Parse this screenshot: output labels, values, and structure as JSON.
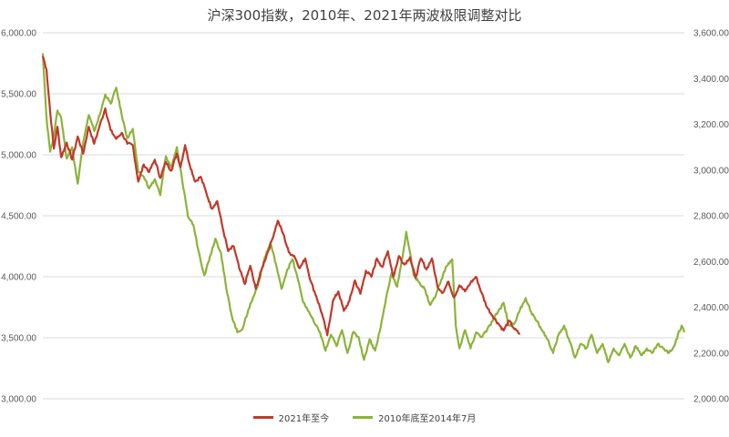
{
  "chart_data": {
    "type": "line",
    "title": "沪深300指数，2010年、2021年两波极限调整对比",
    "x_count": 700,
    "y_left": {
      "ticks": [
        "3,000.00",
        "3,500.00",
        "4,000.00",
        "4,500.00",
        "5,000.00",
        "5,500.00",
        "6,000.00"
      ],
      "range": [
        3000,
        6000
      ]
    },
    "y_right": {
      "ticks": [
        "2,000.00",
        "2,200.00",
        "2,400.00",
        "2,600.00",
        "2,800.00",
        "3,000.00",
        "3,200.00",
        "3,400.00",
        "3,600.00"
      ],
      "range": [
        2000,
        3600
      ]
    },
    "grid": true,
    "legend_position": "bottom",
    "series": [
      {
        "name": "2021年至今",
        "axis": "left",
        "color": "#c0392b",
        "points": [
          [
            0,
            5810
          ],
          [
            4,
            5700
          ],
          [
            8,
            5350
          ],
          [
            12,
            5050
          ],
          [
            16,
            5230
          ],
          [
            20,
            4980
          ],
          [
            26,
            5100
          ],
          [
            32,
            4960
          ],
          [
            38,
            5150
          ],
          [
            44,
            5010
          ],
          [
            50,
            5230
          ],
          [
            56,
            5090
          ],
          [
            62,
            5240
          ],
          [
            68,
            5380
          ],
          [
            74,
            5200
          ],
          [
            80,
            5130
          ],
          [
            86,
            5180
          ],
          [
            92,
            5090
          ],
          [
            98,
            5080
          ],
          [
            104,
            4780
          ],
          [
            110,
            4920
          ],
          [
            116,
            4860
          ],
          [
            122,
            4960
          ],
          [
            128,
            4810
          ],
          [
            134,
            4940
          ],
          [
            140,
            4870
          ],
          [
            146,
            5010
          ],
          [
            150,
            4900
          ],
          [
            155,
            5080
          ],
          [
            160,
            4920
          ],
          [
            166,
            4780
          ],
          [
            172,
            4820
          ],
          [
            178,
            4690
          ],
          [
            184,
            4560
          ],
          [
            190,
            4620
          ],
          [
            196,
            4400
          ],
          [
            202,
            4210
          ],
          [
            208,
            4250
          ],
          [
            214,
            4070
          ],
          [
            220,
            3940
          ],
          [
            226,
            4090
          ],
          [
            232,
            3900
          ],
          [
            238,
            4050
          ],
          [
            244,
            4180
          ],
          [
            250,
            4310
          ],
          [
            256,
            4460
          ],
          [
            262,
            4350
          ],
          [
            268,
            4200
          ],
          [
            274,
            4170
          ],
          [
            280,
            4070
          ],
          [
            286,
            4150
          ],
          [
            292,
            3960
          ],
          [
            298,
            3840
          ],
          [
            304,
            3700
          ],
          [
            310,
            3520
          ],
          [
            316,
            3800
          ],
          [
            322,
            3880
          ],
          [
            328,
            3720
          ],
          [
            334,
            3800
          ],
          [
            340,
            3970
          ],
          [
            346,
            3860
          ],
          [
            352,
            4050
          ],
          [
            358,
            4000
          ],
          [
            364,
            4150
          ],
          [
            370,
            4080
          ],
          [
            376,
            4210
          ],
          [
            382,
            4000
          ],
          [
            388,
            4170
          ],
          [
            394,
            4100
          ],
          [
            400,
            4160
          ],
          [
            406,
            3990
          ],
          [
            412,
            4150
          ],
          [
            418,
            4060
          ],
          [
            424,
            4150
          ],
          [
            430,
            3920
          ],
          [
            436,
            3870
          ],
          [
            442,
            3960
          ],
          [
            448,
            3830
          ],
          [
            454,
            3930
          ],
          [
            460,
            3880
          ],
          [
            466,
            3950
          ],
          [
            472,
            4000
          ],
          [
            478,
            3870
          ],
          [
            484,
            3750
          ],
          [
            490,
            3680
          ],
          [
            496,
            3620
          ],
          [
            502,
            3560
          ],
          [
            508,
            3640
          ],
          [
            514,
            3570
          ],
          [
            520,
            3530
          ]
        ]
      },
      {
        "name": "2010年底至2014年7月",
        "axis": "right",
        "color": "#8db33a",
        "points": [
          [
            0,
            3510
          ],
          [
            4,
            3230
          ],
          [
            8,
            3080
          ],
          [
            12,
            3150
          ],
          [
            16,
            3260
          ],
          [
            20,
            3230
          ],
          [
            26,
            3050
          ],
          [
            32,
            3100
          ],
          [
            38,
            2940
          ],
          [
            44,
            3120
          ],
          [
            50,
            3240
          ],
          [
            56,
            3170
          ],
          [
            62,
            3240
          ],
          [
            68,
            3330
          ],
          [
            74,
            3290
          ],
          [
            80,
            3360
          ],
          [
            86,
            3240
          ],
          [
            92,
            3140
          ],
          [
            98,
            3180
          ],
          [
            104,
            2990
          ],
          [
            110,
            2970
          ],
          [
            116,
            2920
          ],
          [
            122,
            2960
          ],
          [
            128,
            2890
          ],
          [
            134,
            3060
          ],
          [
            140,
            3010
          ],
          [
            146,
            3100
          ],
          [
            152,
            2950
          ],
          [
            158,
            2800
          ],
          [
            164,
            2760
          ],
          [
            170,
            2640
          ],
          [
            176,
            2540
          ],
          [
            182,
            2620
          ],
          [
            188,
            2700
          ],
          [
            194,
            2640
          ],
          [
            200,
            2480
          ],
          [
            206,
            2360
          ],
          [
            212,
            2290
          ],
          [
            218,
            2310
          ],
          [
            224,
            2390
          ],
          [
            230,
            2450
          ],
          [
            236,
            2520
          ],
          [
            242,
            2620
          ],
          [
            248,
            2680
          ],
          [
            254,
            2590
          ],
          [
            260,
            2480
          ],
          [
            266,
            2560
          ],
          [
            272,
            2610
          ],
          [
            278,
            2520
          ],
          [
            284,
            2420
          ],
          [
            290,
            2380
          ],
          [
            296,
            2330
          ],
          [
            302,
            2290
          ],
          [
            308,
            2210
          ],
          [
            314,
            2280
          ],
          [
            320,
            2230
          ],
          [
            326,
            2300
          ],
          [
            332,
            2200
          ],
          [
            338,
            2290
          ],
          [
            344,
            2270
          ],
          [
            350,
            2170
          ],
          [
            356,
            2260
          ],
          [
            362,
            2210
          ],
          [
            368,
            2310
          ],
          [
            374,
            2440
          ],
          [
            380,
            2550
          ],
          [
            386,
            2490
          ],
          [
            392,
            2620
          ],
          [
            396,
            2730
          ],
          [
            400,
            2640
          ],
          [
            404,
            2540
          ],
          [
            410,
            2510
          ],
          [
            416,
            2480
          ],
          [
            422,
            2410
          ],
          [
            428,
            2450
          ],
          [
            434,
            2520
          ],
          [
            440,
            2580
          ],
          [
            446,
            2610
          ],
          [
            450,
            2320
          ],
          [
            454,
            2220
          ],
          [
            460,
            2300
          ],
          [
            466,
            2220
          ],
          [
            472,
            2290
          ],
          [
            478,
            2270
          ],
          [
            484,
            2300
          ],
          [
            490,
            2340
          ],
          [
            496,
            2380
          ],
          [
            502,
            2420
          ],
          [
            508,
            2320
          ],
          [
            514,
            2330
          ],
          [
            520,
            2390
          ],
          [
            526,
            2440
          ],
          [
            532,
            2380
          ],
          [
            538,
            2340
          ],
          [
            544,
            2300
          ],
          [
            550,
            2260
          ],
          [
            556,
            2200
          ],
          [
            562,
            2280
          ],
          [
            568,
            2320
          ],
          [
            574,
            2250
          ],
          [
            580,
            2180
          ],
          [
            586,
            2240
          ],
          [
            592,
            2220
          ],
          [
            598,
            2280
          ],
          [
            604,
            2200
          ],
          [
            610,
            2240
          ],
          [
            616,
            2160
          ],
          [
            622,
            2220
          ],
          [
            628,
            2190
          ],
          [
            634,
            2240
          ],
          [
            640,
            2180
          ],
          [
            646,
            2230
          ],
          [
            652,
            2190
          ],
          [
            658,
            2220
          ],
          [
            664,
            2200
          ],
          [
            670,
            2240
          ],
          [
            676,
            2220
          ],
          [
            682,
            2200
          ],
          [
            688,
            2230
          ],
          [
            692,
            2280
          ],
          [
            696,
            2320
          ],
          [
            699,
            2290
          ]
        ]
      }
    ]
  }
}
